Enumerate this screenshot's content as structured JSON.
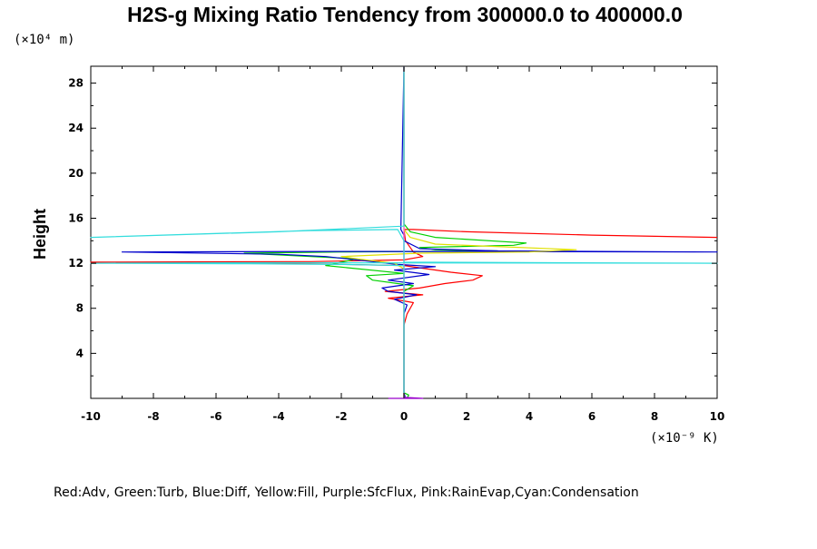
{
  "chart_data": {
    "type": "line",
    "title": "H2S-g Mixing Ratio Tendency from 300000.0 to 400000.0",
    "xlabel": "",
    "ylabel": "Height",
    "x_unit_label": "(×10⁻⁹ K)",
    "y_unit_label": "(×10⁴ m)",
    "xlim": [
      -10,
      10
    ],
    "ylim": [
      0,
      29.5
    ],
    "x_ticks": [
      -10,
      -8,
      -6,
      -4,
      -2,
      0,
      2,
      4,
      6,
      8,
      10
    ],
    "y_ticks": [
      4,
      8,
      12,
      16,
      20,
      24,
      28
    ],
    "legend_text": "Red:Adv, Green:Turb, Blue:Diff, Yellow:Fill, Purple:SfcFlux, Pink:RainEvap,Cyan:Condensation",
    "series": [
      {
        "name": "Adv",
        "color": "#ff0000",
        "points": [
          [
            0,
            0
          ],
          [
            0,
            6.5
          ],
          [
            0.1,
            7.5
          ],
          [
            0.3,
            8.5
          ],
          [
            -0.5,
            8.9
          ],
          [
            0.6,
            9.2
          ],
          [
            -0.6,
            9.5
          ],
          [
            0.5,
            9.8
          ],
          [
            1.3,
            10.2
          ],
          [
            2.2,
            10.5
          ],
          [
            2.5,
            10.9
          ],
          [
            1.5,
            11.2
          ],
          [
            0.5,
            11.6
          ],
          [
            0,
            11.8
          ],
          [
            -3,
            11.95
          ],
          [
            -10,
            12.1
          ],
          [
            -3,
            12.15
          ],
          [
            0,
            12.3
          ],
          [
            0.6,
            12.6
          ],
          [
            0.3,
            13.0
          ],
          [
            0.05,
            14.0
          ],
          [
            0,
            15.0
          ],
          [
            0.3,
            15.0
          ],
          [
            2,
            14.8
          ],
          [
            6,
            14.5
          ],
          [
            10,
            14.3
          ]
        ]
      },
      {
        "name": "Turb",
        "color": "#00d000",
        "points": [
          [
            0.1,
            0
          ],
          [
            0.15,
            0.3
          ],
          [
            0,
            0.5
          ],
          [
            0,
            9.5
          ],
          [
            0.3,
            10
          ],
          [
            -1,
            10.5
          ],
          [
            -1.2,
            10.9
          ],
          [
            0,
            11.1
          ],
          [
            -2.5,
            11.8
          ],
          [
            -1.5,
            12.4
          ],
          [
            -5.1,
            12.9
          ],
          [
            -2,
            13.0
          ],
          [
            0.5,
            13.05
          ],
          [
            3,
            13.1
          ],
          [
            1,
            13.2
          ],
          [
            0.5,
            13.4
          ],
          [
            3.5,
            13.6
          ],
          [
            3.9,
            13.8
          ],
          [
            1,
            14.3
          ],
          [
            0.2,
            14.8
          ],
          [
            0,
            15.5
          ],
          [
            0,
            29.5
          ]
        ]
      },
      {
        "name": "Diff",
        "color": "#0000cc",
        "points": [
          [
            0.05,
            0
          ],
          [
            0,
            0.5
          ],
          [
            0,
            7.5
          ],
          [
            0.1,
            8.3
          ],
          [
            -0.3,
            8.8
          ],
          [
            0.4,
            9.2
          ],
          [
            -0.5,
            9.5
          ],
          [
            -0.7,
            9.8
          ],
          [
            0.3,
            10.2
          ],
          [
            -0.5,
            10.5
          ],
          [
            0.8,
            11.0
          ],
          [
            -0.3,
            11.4
          ],
          [
            1,
            11.7
          ],
          [
            -0.2,
            11.9
          ],
          [
            -1.5,
            12.3
          ],
          [
            -2.5,
            12.6
          ],
          [
            -4,
            12.8
          ],
          [
            -9,
            13.0
          ],
          [
            -2,
            13.05
          ],
          [
            2,
            13.05
          ],
          [
            10,
            13.0
          ],
          [
            3,
            13.1
          ],
          [
            0.5,
            13.3
          ],
          [
            0,
            14.0
          ],
          [
            0,
            14.5
          ],
          [
            -0.1,
            15.0
          ],
          [
            0,
            29.5
          ]
        ]
      },
      {
        "name": "Fill",
        "color": "#e0e000",
        "points": [
          [
            0,
            0
          ],
          [
            0,
            11.5
          ],
          [
            -0.3,
            12.0
          ],
          [
            -1.5,
            12.4
          ],
          [
            -2,
            12.6
          ],
          [
            0.5,
            12.9
          ],
          [
            4,
            13.0
          ],
          [
            5.5,
            13.2
          ],
          [
            1,
            13.7
          ],
          [
            0.2,
            14.3
          ],
          [
            0,
            15.0
          ],
          [
            0,
            29.5
          ]
        ]
      },
      {
        "name": "SfcFlux",
        "color": "#9900cc",
        "points": [
          [
            -0.5,
            0
          ],
          [
            0.6,
            0
          ],
          [
            0,
            0.1
          ],
          [
            0,
            29.5
          ]
        ]
      },
      {
        "name": "RainEvap",
        "color": "#ff77cc",
        "points": [
          [
            0,
            0
          ],
          [
            0,
            29.5
          ]
        ]
      },
      {
        "name": "Condensation",
        "color": "#33dddd",
        "points": [
          [
            0,
            0
          ],
          [
            0,
            11.8
          ],
          [
            -2,
            11.9
          ],
          [
            -5,
            11.95
          ],
          [
            -10,
            12.0
          ],
          [
            -4,
            12.05
          ],
          [
            10,
            12.0
          ],
          [
            0,
            12.1
          ],
          [
            0,
            14.0
          ],
          [
            -0.2,
            15.0
          ],
          [
            -3,
            14.9
          ],
          [
            -10,
            14.3
          ],
          [
            -4,
            14.8
          ],
          [
            0,
            15.3
          ],
          [
            0,
            29.5
          ]
        ]
      }
    ]
  }
}
